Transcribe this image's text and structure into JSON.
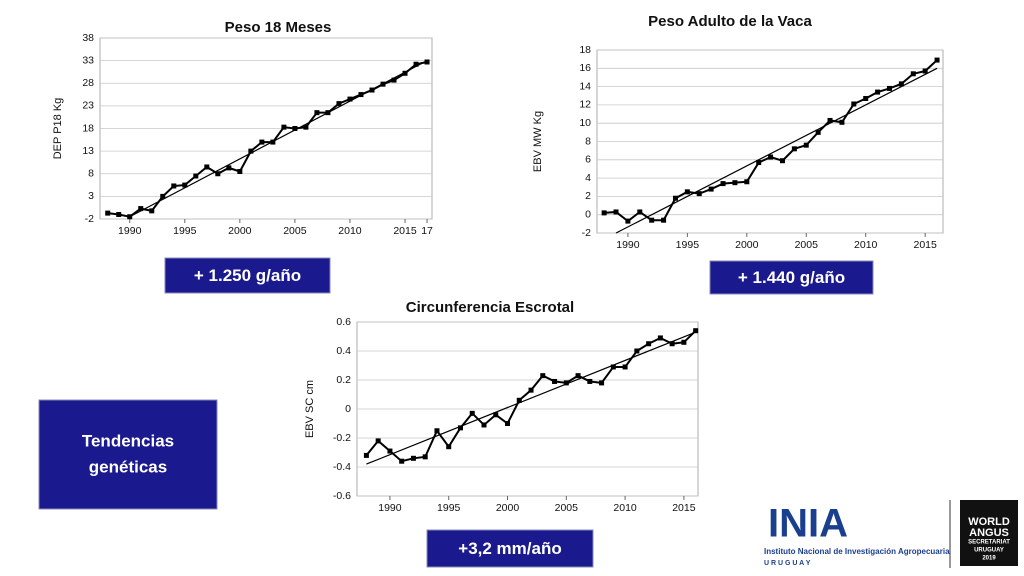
{
  "chart_data": [
    {
      "type": "line",
      "title": "Peso 18 Meses",
      "y_label": "DEP P18 Kg",
      "annotation": "+ 1.250 g/año",
      "x": [
        1988,
        1989,
        1990,
        1991,
        1992,
        1993,
        1994,
        1995,
        1996,
        1997,
        1998,
        1999,
        2000,
        2001,
        2002,
        2003,
        2004,
        2005,
        2006,
        2007,
        2008,
        2009,
        2010,
        2011,
        2012,
        2013,
        2014,
        2015,
        2016,
        2017
      ],
      "series": [
        {
          "color": "#000000",
          "values": [
            -0.7,
            -1,
            -1.5,
            0.3,
            -0.2,
            3,
            5.3,
            5.5,
            7.5,
            9.5,
            8,
            9.3,
            8.5,
            13,
            15,
            15,
            18.3,
            18,
            18.3,
            21.5,
            21.5,
            23.5,
            24.5,
            25.5,
            26.5,
            27.8,
            28.7,
            30.2,
            32.2,
            32.7
          ]
        }
      ],
      "trend": {
        "x": [
          1990,
          2017
        ],
        "values": [
          -1.5,
          33
        ]
      },
      "xlim": [
        1987.3,
        2017.45
      ],
      "ylim": [
        -2,
        38
      ],
      "xticks": [
        1990,
        1995,
        2000,
        2005,
        2010,
        2015,
        {
          "value": 2017,
          "label": "17"
        }
      ],
      "yticks": [
        -2,
        3,
        8,
        13,
        18,
        23,
        28,
        33,
        38
      ],
      "grid": true
    },
    {
      "type": "line",
      "title": "Peso Adulto de la Vaca",
      "y_label": "EBV MW Kg",
      "annotation": "+ 1.440 g/año",
      "x": [
        1988,
        1989,
        1990,
        1991,
        1992,
        1993,
        1994,
        1995,
        1996,
        1997,
        1998,
        1999,
        2000,
        2001,
        2002,
        2003,
        2004,
        2005,
        2006,
        2007,
        2008,
        2009,
        2010,
        2011,
        2012,
        2013,
        2014,
        2015,
        2016
      ],
      "series": [
        {
          "color": "#000000",
          "values": [
            0.2,
            0.3,
            -0.7,
            0.3,
            -0.6,
            -0.6,
            1.8,
            2.5,
            2.3,
            2.8,
            3.4,
            3.5,
            3.6,
            5.7,
            6.3,
            5.9,
            7.2,
            7.6,
            9.0,
            10.3,
            10.1,
            12.1,
            12.7,
            13.4,
            13.8,
            14.3,
            15.4,
            15.7,
            16.9
          ]
        }
      ],
      "trend": {
        "x": [
          1989,
          2016
        ],
        "values": [
          -2,
          16
        ]
      },
      "xlim": [
        1987.4,
        2016.5
      ],
      "ylim": [
        -2,
        18
      ],
      "xticks": [
        1990,
        1995,
        2000,
        2005,
        2010,
        2015
      ],
      "yticks": [
        -2,
        0,
        2,
        4,
        6,
        8,
        10,
        12,
        14,
        16,
        18
      ],
      "grid": true
    },
    {
      "type": "line",
      "title": "Circunferencia Escrotal",
      "y_label": "EBV SC  cm",
      "annotation": "+3,2 mm/año",
      "x": [
        1988,
        1989,
        1990,
        1991,
        1992,
        1993,
        1994,
        1995,
        1996,
        1997,
        1998,
        1999,
        2000,
        2001,
        2002,
        2003,
        2004,
        2005,
        2006,
        2007,
        2008,
        2009,
        2010,
        2011,
        2012,
        2013,
        2014,
        2015,
        2016
      ],
      "series": [
        {
          "color": "#000000",
          "values": [
            -0.32,
            -0.22,
            -0.29,
            -0.36,
            -0.34,
            -0.33,
            -0.15,
            -0.26,
            -0.13,
            -0.03,
            -0.11,
            -0.04,
            -0.1,
            0.06,
            0.13,
            0.23,
            0.19,
            0.18,
            0.23,
            0.19,
            0.18,
            0.29,
            0.29,
            0.4,
            0.45,
            0.49,
            0.45,
            0.46,
            0.54
          ]
        }
      ],
      "trend": {
        "x": [
          1988,
          2016
        ],
        "values": [
          -0.38,
          0.53
        ]
      },
      "xlim": [
        1987.2,
        2016.2
      ],
      "ylim": [
        -0.6,
        0.6
      ],
      "xticks": [
        1990,
        1995,
        2000,
        2005,
        2010,
        2015
      ],
      "yticks": [
        -0.6,
        -0.4,
        -0.2,
        0,
        0.2,
        0.4,
        0.6
      ],
      "grid": true
    }
  ],
  "sidebox": {
    "lines": [
      "Tendencias",
      "genéticas"
    ]
  },
  "logo": {
    "acronym": "INIA",
    "name": "Instituto Nacional de Investigación Agropecuaria",
    "country": "U R U G U A Y"
  },
  "badge": {
    "lines": [
      "WORLD",
      "ANGUS",
      "SECRETARIAT",
      "URUGUAY",
      "2019"
    ]
  }
}
